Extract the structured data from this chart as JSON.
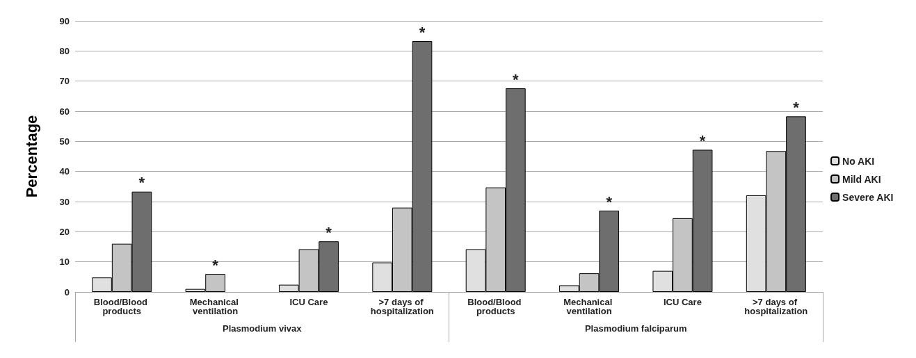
{
  "chart_data": {
    "type": "bar",
    "ylabel": "Percentage",
    "categories": [
      "Blood/Blood products",
      "Mechanical ventilation",
      "ICU Care",
      ">7 days of hospitalization",
      "Blood/Blood products",
      "Mechanical ventilation",
      "ICU Care",
      ">7 days of hospitalization"
    ],
    "series": [
      {
        "name": "No AKI",
        "color": "#e0e0e0",
        "values": [
          4.8,
          1,
          2.4,
          9.8,
          14.2,
          2.2,
          7,
          32.1
        ]
      },
      {
        "name": "Mild AKI",
        "color": "#c4c4c4",
        "values": [
          16,
          6,
          14.2,
          28,
          34.7,
          6.2,
          24.5,
          46.8
        ],
        "value_labels": [
          null,
          "*",
          null,
          null,
          null,
          null,
          null,
          null
        ]
      },
      {
        "name": "Severe AKI",
        "color": "#6e6e6e",
        "values": [
          33.3,
          null,
          16.8,
          83.3,
          67.6,
          27,
          47.2,
          58.3
        ],
        "value_labels": [
          "*",
          null,
          "*",
          "*",
          "*",
          "*",
          "*",
          "*"
        ]
      }
    ],
    "annotations": [
      "Plasmodium vivax",
      "Plasmodium falciparum"
    ],
    "ylim": [
      0,
      90
    ],
    "yticks": [
      0,
      10,
      20,
      30,
      40,
      50,
      60,
      70,
      80,
      90
    ],
    "grid": "y",
    "legend": "right"
  }
}
